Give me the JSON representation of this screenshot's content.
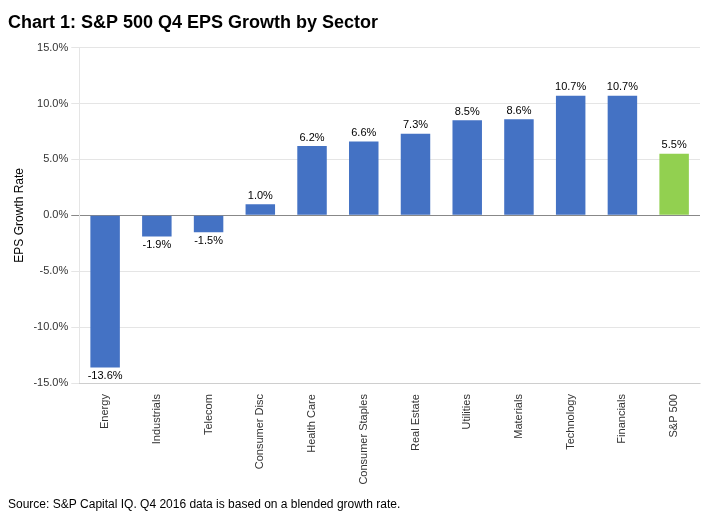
{
  "chart_data": {
    "type": "bar",
    "title": "Chart 1: S&P 500 Q4 EPS Growth by Sector",
    "categories": [
      "Energy",
      "Industrials",
      "Telecom",
      "Consumer Disc",
      "Health Care",
      "Consumer Staples",
      "Real Estate",
      "Utilities",
      "Materials",
      "Technology",
      "Financials",
      "S&P 500"
    ],
    "values": [
      -13.6,
      -1.9,
      -1.5,
      1.0,
      6.2,
      6.6,
      7.3,
      8.5,
      8.6,
      10.7,
      10.7,
      5.5
    ],
    "value_labels": [
      "-13.6%",
      "-1.9%",
      "-1.5%",
      "1.0%",
      "6.2%",
      "6.6%",
      "7.3%",
      "8.5%",
      "8.6%",
      "10.7%",
      "10.7%",
      "5.5%"
    ],
    "data_labels": true,
    "colors": [
      "#4472C4",
      "#4472C4",
      "#4472C4",
      "#4472C4",
      "#4472C4",
      "#4472C4",
      "#4472C4",
      "#4472C4",
      "#4472C4",
      "#4472C4",
      "#4472C4",
      "#92D050"
    ],
    "ylabel": "EPS Growth Rate",
    "ylim": [
      -15.0,
      15.0
    ],
    "yticks": [
      {
        "value": -15.0,
        "label": "-15.0%"
      },
      {
        "value": -10.0,
        "label": "-10.0%"
      },
      {
        "value": -5.0,
        "label": "-5.0%"
      },
      {
        "value": 0.0,
        "label": "0.0%"
      },
      {
        "value": 5.0,
        "label": "5.0%"
      },
      {
        "value": 10.0,
        "label": "10.0%"
      },
      {
        "value": 15.0,
        "label": "15.0%"
      }
    ],
    "grid": true,
    "annotations": [
      "Source: S&P Capital IQ. Q4 2016 data is based on a blended growth rate."
    ]
  }
}
